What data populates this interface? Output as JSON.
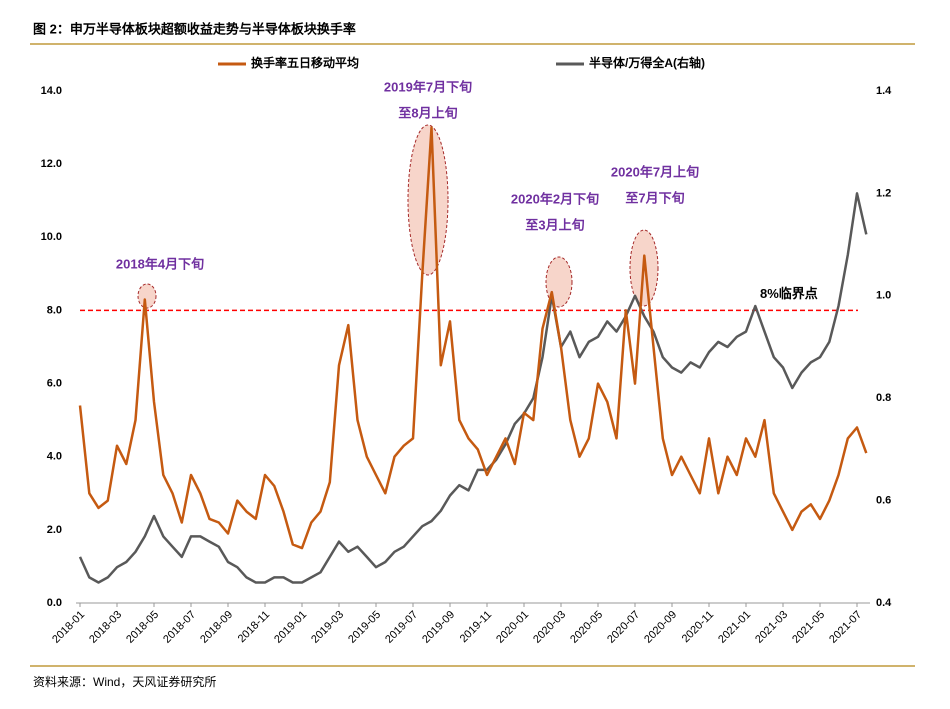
{
  "chart_data": {
    "type": "line",
    "title": "图 2：申万半导体板块超额收益走势与半导体板块换手率",
    "source": "资料来源：Wind，天风证券研究所",
    "categories": [
      "2018-01",
      null,
      null,
      null,
      "2018-03",
      null,
      null,
      null,
      "2018-05",
      null,
      null,
      null,
      "2018-07",
      null,
      null,
      null,
      "2018-09",
      null,
      null,
      null,
      "2018-11",
      null,
      null,
      null,
      "2019-01",
      null,
      null,
      null,
      "2019-03",
      null,
      null,
      null,
      "2019-05",
      null,
      null,
      null,
      "2019-07",
      null,
      null,
      null,
      "2019-09",
      null,
      null,
      null,
      "2019-11",
      null,
      null,
      null,
      "2020-01",
      null,
      null,
      null,
      "2020-03",
      null,
      null,
      null,
      "2020-05",
      null,
      null,
      null,
      "2020-07",
      null,
      null,
      null,
      "2020-09",
      null,
      null,
      null,
      "2020-11",
      null,
      null,
      null,
      "2021-01",
      null,
      null,
      null,
      "2021-03",
      null,
      null,
      null,
      "2021-05",
      null,
      null,
      null,
      "2021-07",
      null
    ],
    "series": [
      {
        "name": "换手率五日移动平均",
        "color": "#c55a11",
        "axis": "y",
        "values": [
          5.4,
          3.0,
          2.6,
          2.8,
          4.3,
          3.8,
          5.0,
          8.3,
          5.5,
          3.5,
          3.0,
          2.2,
          3.5,
          3.0,
          2.3,
          2.2,
          1.9,
          2.8,
          2.5,
          2.3,
          3.5,
          3.2,
          2.5,
          1.6,
          1.5,
          2.2,
          2.5,
          3.3,
          6.5,
          7.6,
          5.0,
          4.0,
          3.5,
          3.0,
          4.0,
          4.3,
          4.5,
          9.0,
          13.0,
          6.5,
          7.7,
          5.0,
          4.5,
          4.2,
          3.5,
          4.0,
          4.5,
          3.8,
          5.2,
          5.0,
          7.5,
          8.5,
          7.0,
          5.0,
          4.0,
          4.5,
          6.0,
          5.5,
          4.5,
          8.0,
          6.0,
          9.5,
          7.0,
          4.5,
          3.5,
          4.0,
          3.5,
          3.0,
          4.5,
          3.0,
          4.0,
          3.5,
          4.5,
          4.0,
          5.0,
          3.0,
          2.5,
          2.0,
          2.5,
          2.7,
          2.3,
          2.8,
          3.5,
          4.5,
          4.8,
          4.1
        ]
      },
      {
        "name": "半导体/万得全A(右轴)",
        "color": "#595959",
        "axis": "y2",
        "values": [
          0.49,
          0.45,
          0.44,
          0.45,
          0.47,
          0.48,
          0.5,
          0.53,
          0.57,
          0.53,
          0.51,
          0.49,
          0.53,
          0.53,
          0.52,
          0.51,
          0.48,
          0.47,
          0.45,
          0.44,
          0.44,
          0.45,
          0.45,
          0.44,
          0.44,
          0.45,
          0.46,
          0.49,
          0.52,
          0.5,
          0.51,
          0.49,
          0.47,
          0.48,
          0.5,
          0.51,
          0.53,
          0.55,
          0.56,
          0.58,
          0.61,
          0.63,
          0.62,
          0.66,
          0.66,
          0.68,
          0.71,
          0.75,
          0.77,
          0.8,
          0.88,
          1.0,
          0.9,
          0.93,
          0.88,
          0.91,
          0.92,
          0.95,
          0.93,
          0.96,
          1.0,
          0.96,
          0.93,
          0.88,
          0.86,
          0.85,
          0.87,
          0.86,
          0.89,
          0.91,
          0.9,
          0.92,
          0.93,
          0.98,
          0.93,
          0.88,
          0.86,
          0.82,
          0.85,
          0.87,
          0.88,
          0.91,
          0.98,
          1.08,
          1.2,
          1.12
        ]
      }
    ],
    "ylim": [
      0,
      14
    ],
    "yticks": [
      {
        "value": 0,
        "label": "0.0"
      },
      {
        "value": 2,
        "label": "2.0"
      },
      {
        "value": 4,
        "label": "4.0"
      },
      {
        "value": 6,
        "label": "6.0"
      },
      {
        "value": 8,
        "label": "8.0"
      },
      {
        "value": 10,
        "label": "10.0"
      },
      {
        "value": 12,
        "label": "12.0"
      },
      {
        "value": 14,
        "label": "14.0"
      }
    ],
    "y2lim": [
      0.4,
      1.4
    ],
    "y2ticks": [
      0.4,
      0.6,
      0.8,
      {
        "value": 1,
        "label": "1.0"
      },
      1.2,
      1.4
    ],
    "hline": {
      "value": 8,
      "label": "8%临界点",
      "color": "#ff0000"
    },
    "annotations": [
      {
        "lines": [
          "2018年4月下旬"
        ]
      },
      {
        "lines": [
          "2019年7月下旬",
          "至8月上旬"
        ]
      },
      {
        "lines": [
          "2020年2月下旬",
          "至3月上旬"
        ]
      },
      {
        "lines": [
          "2020年7月上旬",
          "至7月下旬"
        ]
      }
    ]
  }
}
